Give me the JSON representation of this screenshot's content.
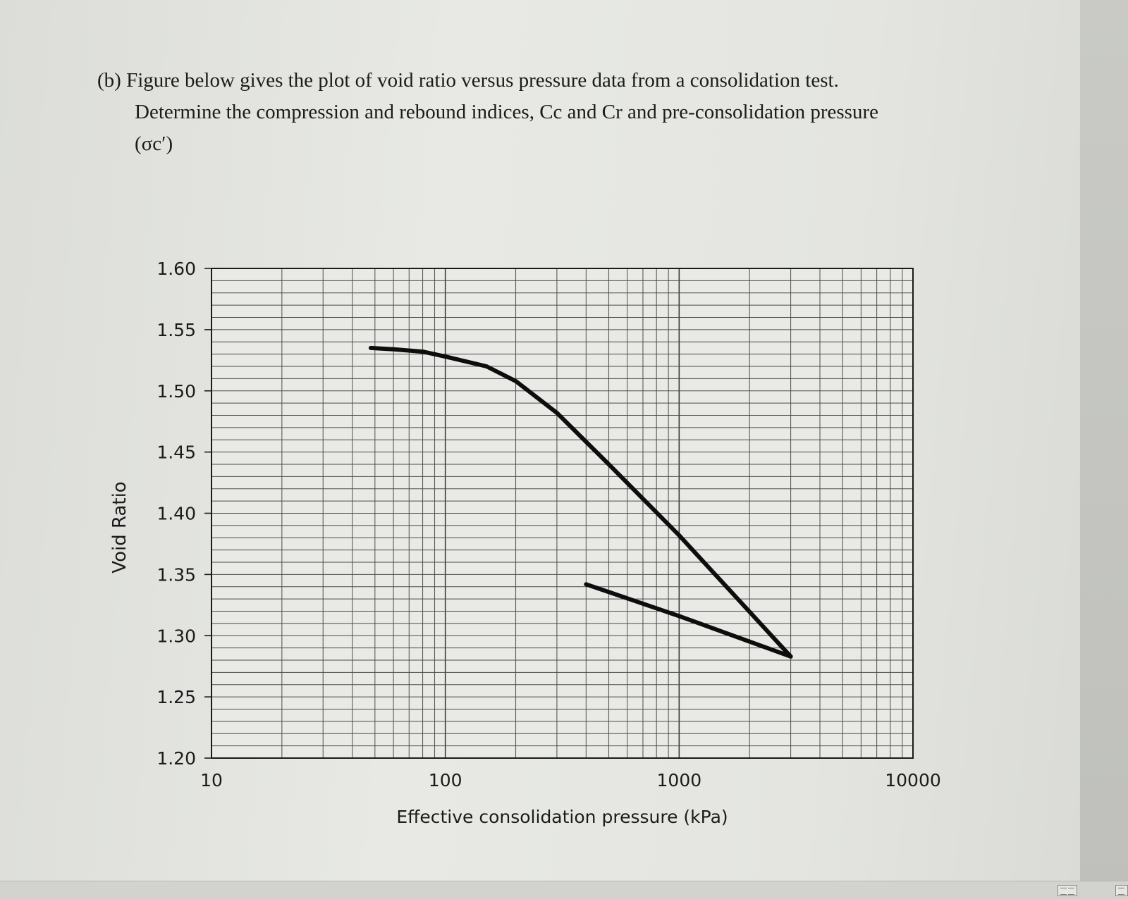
{
  "question": {
    "line1": "(b) Figure below gives the plot of void ratio versus pressure data from a consolidation test.",
    "line2": "Determine the compression and rebound indices, Cc and Cr and pre-consolidation pressure",
    "line3": "(σc′)"
  },
  "chart_data": {
    "type": "line",
    "xscale": "log",
    "xlabel": "Effective consolidation pressure (kPa)",
    "ylabel": "Void Ratio",
    "xlim": [
      10,
      10000
    ],
    "ylim": [
      1.2,
      1.6
    ],
    "grid": true,
    "x_tick_labels": [
      "10",
      "100",
      "1000",
      "10000"
    ],
    "y_tick_labels": [
      "1.20",
      "1.25",
      "1.30",
      "1.35",
      "1.40",
      "1.45",
      "1.50",
      "1.55",
      "1.60"
    ],
    "y_ticks": [
      1.2,
      1.25,
      1.3,
      1.35,
      1.4,
      1.45,
      1.5,
      1.55,
      1.6
    ],
    "x_ticks": [
      10,
      100,
      1000,
      10000
    ],
    "series": [
      {
        "x": [
          48,
          60,
          80,
          100,
          150,
          200,
          300,
          500,
          1000,
          3000
        ],
        "y": [
          1.535,
          1.534,
          1.532,
          1.528,
          1.52,
          1.508,
          1.482,
          1.44,
          1.382,
          1.283
        ]
      },
      {
        "x": [
          3000,
          1000,
          400
        ],
        "y": [
          1.283,
          1.316,
          1.342
        ]
      }
    ]
  }
}
